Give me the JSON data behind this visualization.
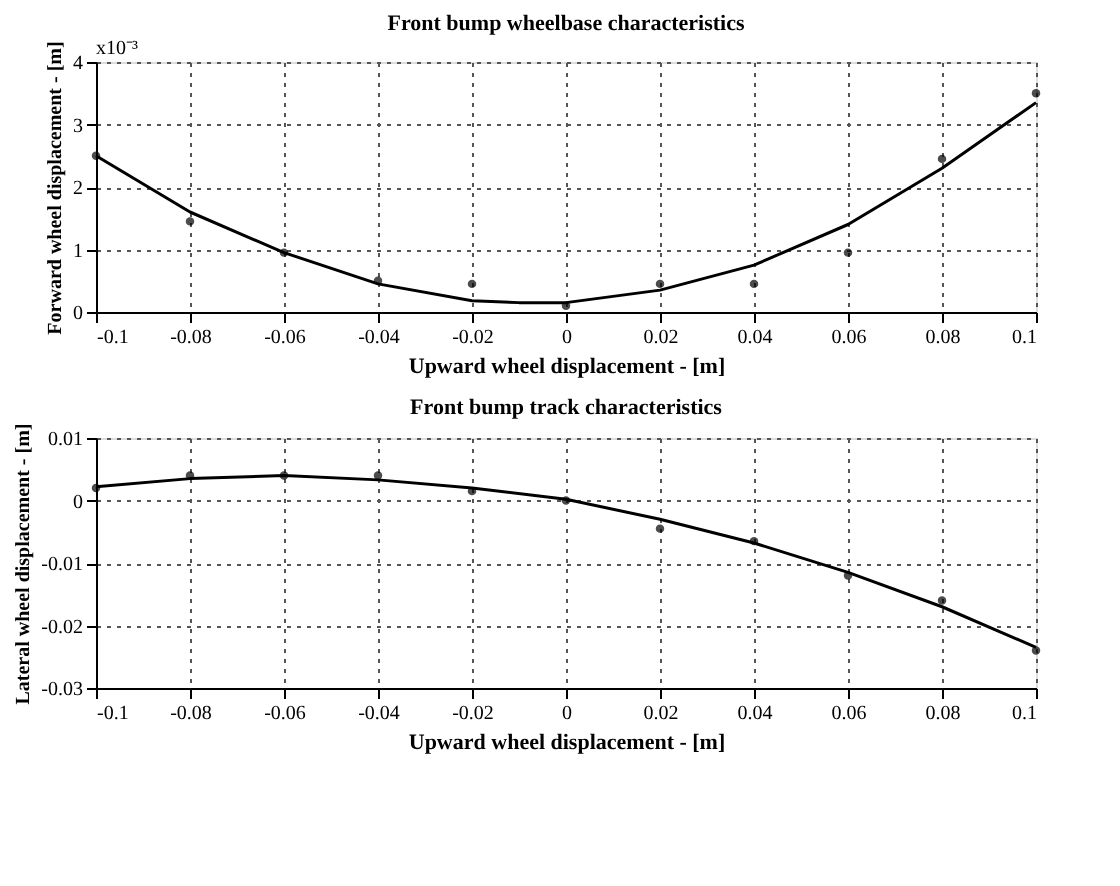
{
  "chart_data": [
    {
      "type": "line",
      "title": "Front bump wheelbase characteristics",
      "xlabel": "Upward wheel displacement - [m]",
      "ylabel": "Forward wheel displacement - [m]",
      "xlim": [
        -0.1,
        0.1
      ],
      "xticks": [
        -0.1,
        -0.08,
        -0.06,
        -0.04,
        -0.02,
        0,
        0.02,
        0.04,
        0.06,
        0.08,
        0.1
      ],
      "ylim": [
        0,
        4
      ],
      "yticks": [
        0,
        1,
        2,
        3,
        4
      ],
      "annotations": [
        "x10⁻³"
      ],
      "grid": true,
      "series": [
        {
          "type": "line",
          "color": "#000000",
          "marker": "none",
          "x": [
            -0.1,
            -0.08,
            -0.06,
            -0.04,
            -0.02,
            -0.01,
            0,
            0.02,
            0.04,
            0.06,
            0.08,
            0.1
          ],
          "values": [
            2.5,
            1.6,
            0.95,
            0.45,
            0.18,
            0.15,
            0.15,
            0.35,
            0.75,
            1.4,
            2.3,
            3.35
          ]
        },
        {
          "type": "scatter",
          "color": "#000000",
          "marker": "circle",
          "x": [
            -0.1,
            -0.08,
            -0.06,
            -0.04,
            -0.02,
            0,
            0.02,
            0.04,
            0.06,
            0.08,
            0.1
          ],
          "values": [
            2.5,
            1.45,
            0.95,
            0.5,
            0.45,
            0.1,
            0.45,
            0.45,
            0.95,
            2.45,
            3.5
          ]
        }
      ]
    },
    {
      "type": "line",
      "title": "Front bump track characteristics",
      "xlabel": "Upward wheel displacement - [m]",
      "ylabel": "Lateral wheel displacement - [m]",
      "xlim": [
        -0.1,
        0.1
      ],
      "xticks": [
        -0.1,
        -0.08,
        -0.06,
        -0.04,
        -0.02,
        0,
        0.02,
        0.04,
        0.06,
        0.08,
        0.1
      ],
      "ylim": [
        -0.03,
        0.01
      ],
      "yticks": [
        -0.03,
        -0.02,
        -0.01,
        0,
        0.01
      ],
      "grid": true,
      "series": [
        {
          "type": "line",
          "color": "#000000",
          "marker": "none",
          "x": [
            -0.1,
            -0.08,
            -0.06,
            -0.04,
            -0.02,
            0,
            0.02,
            0.04,
            0.06,
            0.08,
            0.1
          ],
          "values": [
            0.0022,
            0.0035,
            0.004,
            0.0033,
            0.002,
            0.0002,
            -0.003,
            -0.0068,
            -0.0115,
            -0.017,
            -0.0235
          ]
        },
        {
          "type": "scatter",
          "color": "#000000",
          "marker": "circle",
          "x": [
            -0.1,
            -0.08,
            -0.06,
            -0.04,
            -0.02,
            0,
            0.02,
            0.04,
            0.06,
            0.08,
            0.1
          ],
          "values": [
            0.002,
            0.004,
            0.004,
            0.004,
            0.0015,
            0,
            -0.0045,
            -0.0065,
            -0.012,
            -0.016,
            -0.024
          ]
        }
      ]
    }
  ]
}
